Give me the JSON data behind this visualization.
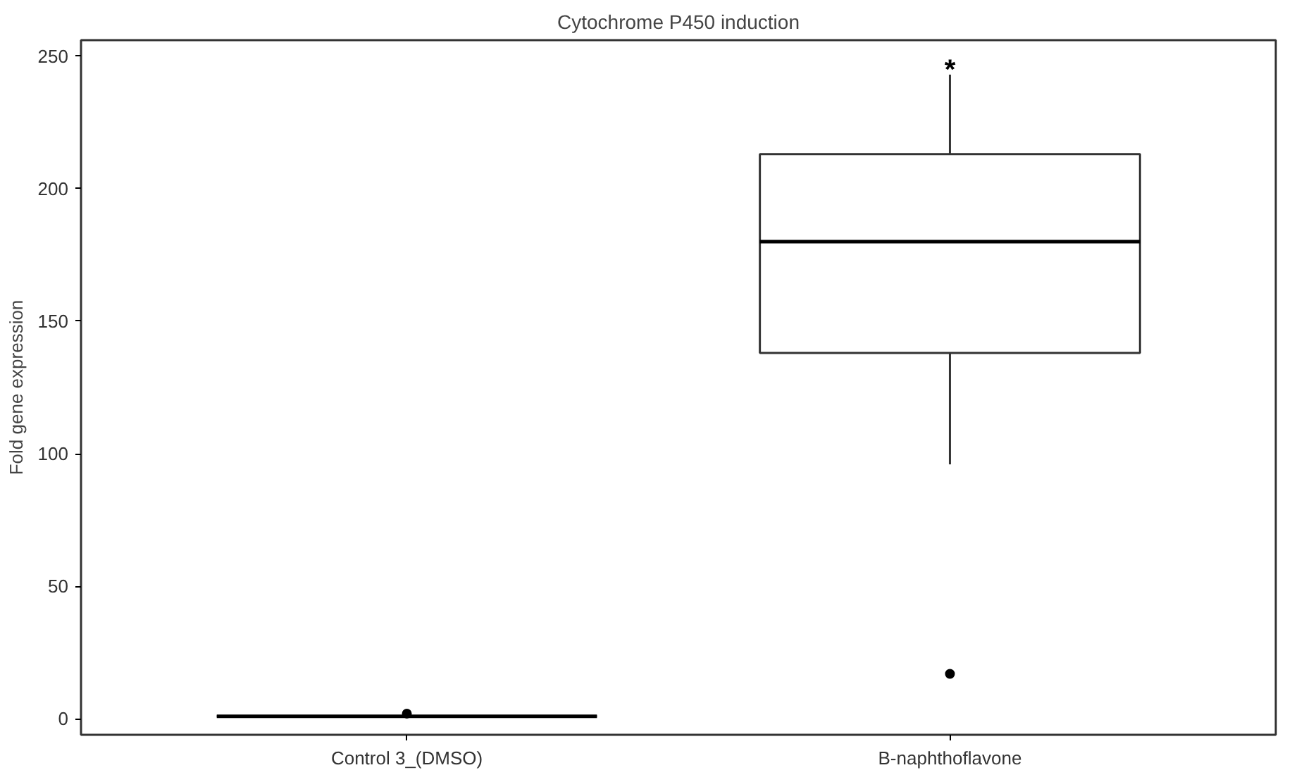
{
  "chart_data": {
    "type": "box",
    "title": "Cytochrome P450 induction",
    "ylabel": "Fold gene expression",
    "categories": [
      "Control 3_(DMSO)",
      "B-naphthoflavone"
    ],
    "boxes": [
      {
        "low": 1,
        "q1": 1,
        "median": 1,
        "q3": 1,
        "high": 1,
        "outliers": [
          2
        ]
      },
      {
        "low": 96,
        "q1": 138,
        "median": 180,
        "q3": 213,
        "high": 243,
        "outliers": [
          17
        ]
      }
    ],
    "ylim": [
      -6,
      256
    ],
    "yticks": [
      0,
      50,
      100,
      150,
      200,
      250
    ],
    "grid": false,
    "annotations": [
      "*"
    ]
  }
}
